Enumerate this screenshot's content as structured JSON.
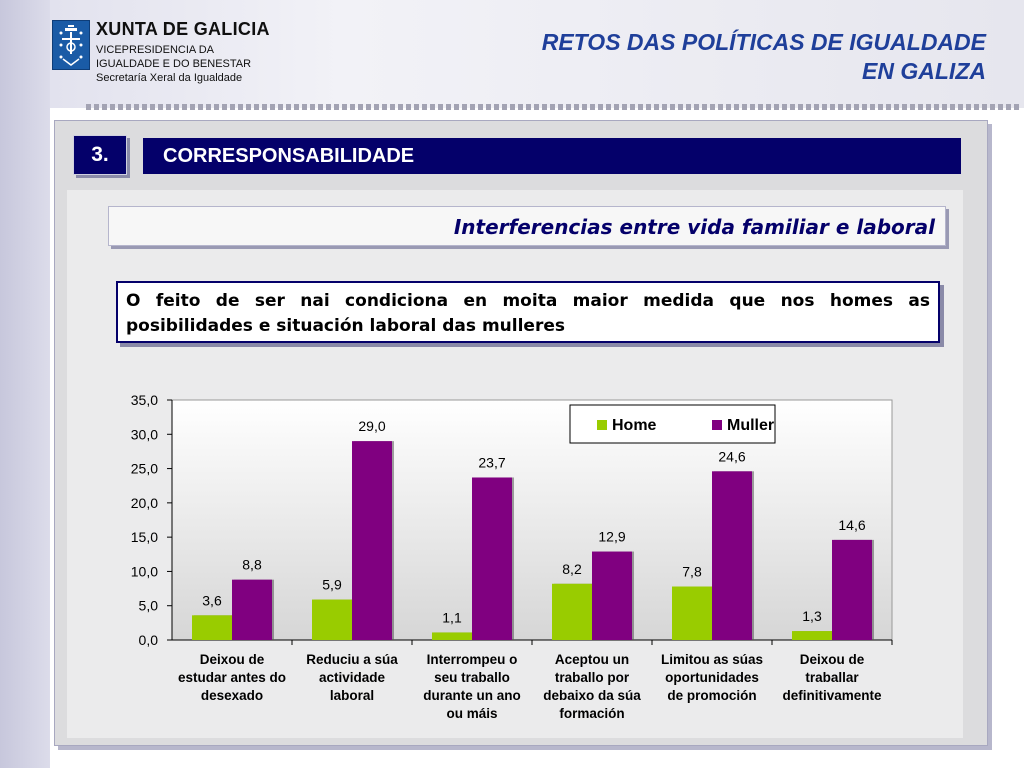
{
  "header": {
    "org_name": "XUNTA DE GALICIA",
    "org_lines": [
      "VICEPRESIDENCIA DA",
      "IGUALDADE E DO BENESTAR",
      "Secretaría Xeral da Igualdade"
    ],
    "title_line1": "RETOS DAS POLÍTICAS DE IGUALDADE",
    "title_line2": "EN GALIZA"
  },
  "section": {
    "number": "3.",
    "title": "CORRESPONSABILIDADE"
  },
  "subtitle": "Interferencias entre vida familiar e laboral",
  "statement": "O feito de ser nai condiciona en moita maior medida que nos homes as posibilidades e situación laboral das mulleres",
  "colors": {
    "home": "#99cc00",
    "muller": "#800080",
    "title": "#1f3f9a",
    "navy": "#04006a"
  },
  "chart_data": {
    "type": "bar",
    "categories": [
      [
        "Deixou de",
        "estudar antes do",
        "desexado"
      ],
      [
        "Reduciu a súa",
        "actividade",
        "laboral"
      ],
      [
        "Interrompeu o",
        "seu traballo",
        "durante un ano",
        "ou máis"
      ],
      [
        "Aceptou un",
        "traballo por",
        "debaixo da súa",
        "formación"
      ],
      [
        "Limitou as súas",
        "oportunidades",
        "de promoción"
      ],
      [
        "Deixou de",
        "traballar",
        "definitivamente"
      ]
    ],
    "series": [
      {
        "name": "Home",
        "values": [
          3.6,
          5.9,
          1.1,
          8.2,
          7.8,
          1.3
        ],
        "labels": [
          "3,6",
          "5,9",
          "1,1",
          "8,2",
          "7,8",
          "1,3"
        ]
      },
      {
        "name": "Muller",
        "values": [
          8.8,
          29.0,
          23.7,
          12.9,
          24.6,
          14.6
        ],
        "labels": [
          "8,8",
          "29,0",
          "23,7",
          "12,9",
          "24,6",
          "14,6"
        ]
      }
    ],
    "ylim": [
      0,
      35
    ],
    "yticks": [
      "0,0",
      "5,0",
      "10,0",
      "15,0",
      "20,0",
      "25,0",
      "30,0",
      "35,0"
    ],
    "legend": "top-right",
    "grid": false
  }
}
